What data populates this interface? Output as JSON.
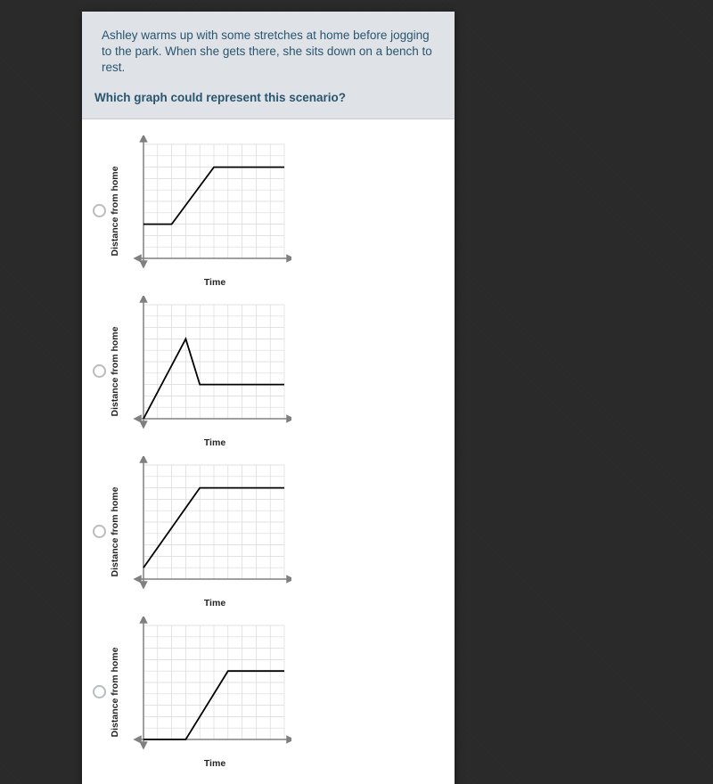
{
  "header": {
    "scenario": "Ashley warms up with some stretches at home before jogging to the park. When she gets there, she sits down on a bench to rest.",
    "question": "Which graph could represent this scenario?"
  },
  "chart_common": {
    "xlabel": "Time",
    "ylabel": "Distance from home",
    "grid_count": 10,
    "grid_color": "#d9d9d9",
    "axis_color": "#808080",
    "line_color": "#000000",
    "line_width": 1.8,
    "background_color": "#ffffff",
    "label_fontsize": 10.5
  },
  "options": [
    {
      "id": "graph-a",
      "points": [
        [
          0,
          3
        ],
        [
          2,
          3
        ],
        [
          5,
          8
        ],
        [
          10,
          8
        ]
      ]
    },
    {
      "id": "graph-b",
      "points": [
        [
          0,
          0
        ],
        [
          3,
          7
        ],
        [
          4,
          3
        ],
        [
          10,
          3
        ]
      ]
    },
    {
      "id": "graph-c",
      "points": [
        [
          0,
          1
        ],
        [
          4,
          8
        ],
        [
          10,
          8
        ]
      ]
    },
    {
      "id": "graph-d",
      "points": [
        [
          0,
          0
        ],
        [
          3,
          0
        ],
        [
          6,
          6
        ],
        [
          10,
          6
        ]
      ]
    }
  ]
}
